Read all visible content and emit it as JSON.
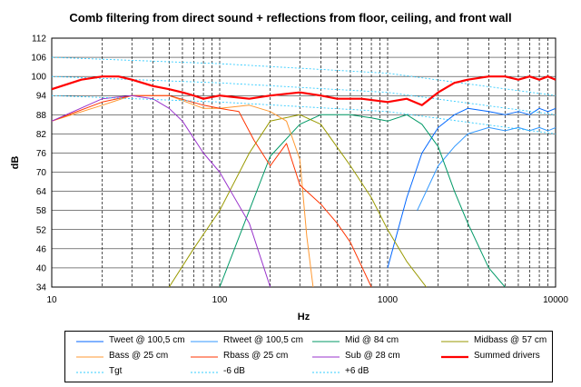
{
  "chart_data": {
    "type": "line",
    "title": "Comb filtering from direct sound + reflections from floor, ceiling, and front wall",
    "xlabel": "Hz",
    "ylabel": "dB",
    "xscale": "log",
    "xlim": [
      10,
      10000
    ],
    "ylim": [
      34,
      112
    ],
    "xticks": [
      "10",
      "100",
      "1000",
      "10000"
    ],
    "yticks": [
      "34",
      "40",
      "46",
      "52",
      "58",
      "64",
      "70",
      "76",
      "82",
      "88",
      "94",
      "100",
      "106",
      "112"
    ],
    "grid": "dashed vertical at each decade step, solid horizontal every 6 dB",
    "legend_position": "bottom",
    "series": [
      {
        "name": "Tweet @ 100,5 cm",
        "color": "#0066ff",
        "x": [
          1000,
          1300,
          1600,
          2000,
          2500,
          3000,
          4000,
          5000,
          6000,
          7000,
          8000,
          9000,
          10000
        ],
        "values": [
          40,
          62,
          76,
          84,
          88,
          90,
          89,
          88,
          89,
          88,
          90,
          89,
          90
        ]
      },
      {
        "name": "Rtweet @ 100,5 cm",
        "color": "#3399ff",
        "x": [
          1500,
          2000,
          2500,
          3000,
          4000,
          5000,
          6000,
          7000,
          8000,
          9000,
          10000
        ],
        "values": [
          58,
          72,
          78,
          82,
          84,
          83,
          84,
          83,
          84,
          83,
          84
        ]
      },
      {
        "name": "Mid @ 84 cm",
        "color": "#009966",
        "x": [
          100,
          150,
          200,
          300,
          400,
          600,
          800,
          1000,
          1300,
          1600,
          2000,
          2500,
          3000,
          4000,
          5000
        ],
        "values": [
          34,
          58,
          75,
          85,
          88,
          88,
          87,
          86,
          88,
          85,
          78,
          64,
          54,
          40,
          34
        ]
      },
      {
        "name": "Midbass @ 57 cm",
        "color": "#999900",
        "x": [
          50,
          70,
          100,
          150,
          200,
          300,
          400,
          600,
          800,
          1000,
          1300,
          1700
        ],
        "values": [
          34,
          46,
          58,
          76,
          86,
          88,
          85,
          72,
          62,
          52,
          42,
          34
        ]
      },
      {
        "name": "Bass @ 25 cm",
        "color": "#ff9933",
        "x": [
          10,
          20,
          30,
          50,
          80,
          100,
          150,
          200,
          250,
          300,
          330,
          360
        ],
        "values": [
          86,
          91,
          94,
          94,
          90,
          90,
          91,
          89,
          86,
          74,
          50,
          34
        ]
      },
      {
        "name": "Rbass @ 25 cm",
        "color": "#ff3300",
        "x": [
          10,
          20,
          30,
          50,
          80,
          100,
          130,
          160,
          200,
          250,
          300,
          400,
          500,
          600,
          800
        ],
        "values": [
          86,
          92,
          94,
          94,
          91,
          90,
          89,
          80,
          72,
          79,
          66,
          60,
          54,
          48,
          34
        ]
      },
      {
        "name": "Sub @ 28 cm",
        "color": "#9933cc",
        "x": [
          10,
          20,
          30,
          40,
          50,
          60,
          80,
          100,
          150,
          200
        ],
        "values": [
          86,
          93,
          94,
          93,
          90,
          86,
          76,
          70,
          54,
          34
        ]
      },
      {
        "name": "Summed drivers",
        "color": "#ff0000",
        "x": [
          10,
          15,
          20,
          25,
          30,
          40,
          50,
          60,
          70,
          80,
          100,
          150,
          200,
          300,
          400,
          500,
          700,
          1000,
          1300,
          1600,
          2000,
          2500,
          3000,
          4000,
          5000,
          6000,
          7000,
          8000,
          9000,
          10000
        ],
        "values": [
          96,
          99,
          100,
          100,
          99,
          97,
          96,
          95,
          94,
          93,
          94,
          93,
          94,
          95,
          94,
          93,
          93,
          92,
          93,
          91,
          95,
          98,
          99,
          100,
          100,
          99,
          100,
          99,
          100,
          99
        ]
      },
      {
        "name": "Tgt",
        "color": "#33ccff",
        "x": [
          10,
          100,
          1000,
          10000
        ],
        "values": [
          100,
          98,
          95,
          88
        ]
      },
      {
        "name": "-6 dB",
        "color": "#33ccff",
        "x": [
          10,
          100,
          1000,
          10000
        ],
        "values": [
          94,
          92,
          89,
          82
        ]
      },
      {
        "name": "+6 dB",
        "color": "#33ccff",
        "x": [
          10,
          100,
          1000,
          10000
        ],
        "values": [
          106,
          104,
          101,
          94
        ]
      }
    ]
  }
}
